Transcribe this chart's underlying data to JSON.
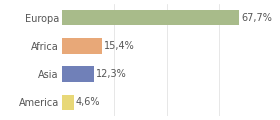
{
  "categories": [
    "Europa",
    "Africa",
    "Asia",
    "America"
  ],
  "values": [
    67.7,
    15.4,
    12.3,
    4.6
  ],
  "labels": [
    "67,7%",
    "15,4%",
    "12,3%",
    "4,6%"
  ],
  "bar_colors": [
    "#a8bb8a",
    "#e8a878",
    "#7080b8",
    "#e8d878"
  ],
  "background_color": "#ffffff",
  "xlim": [
    0,
    80
  ],
  "label_fontsize": 7.0,
  "tick_fontsize": 7.0,
  "bar_height": 0.55,
  "grid_lines": [
    20,
    40,
    60,
    80
  ]
}
